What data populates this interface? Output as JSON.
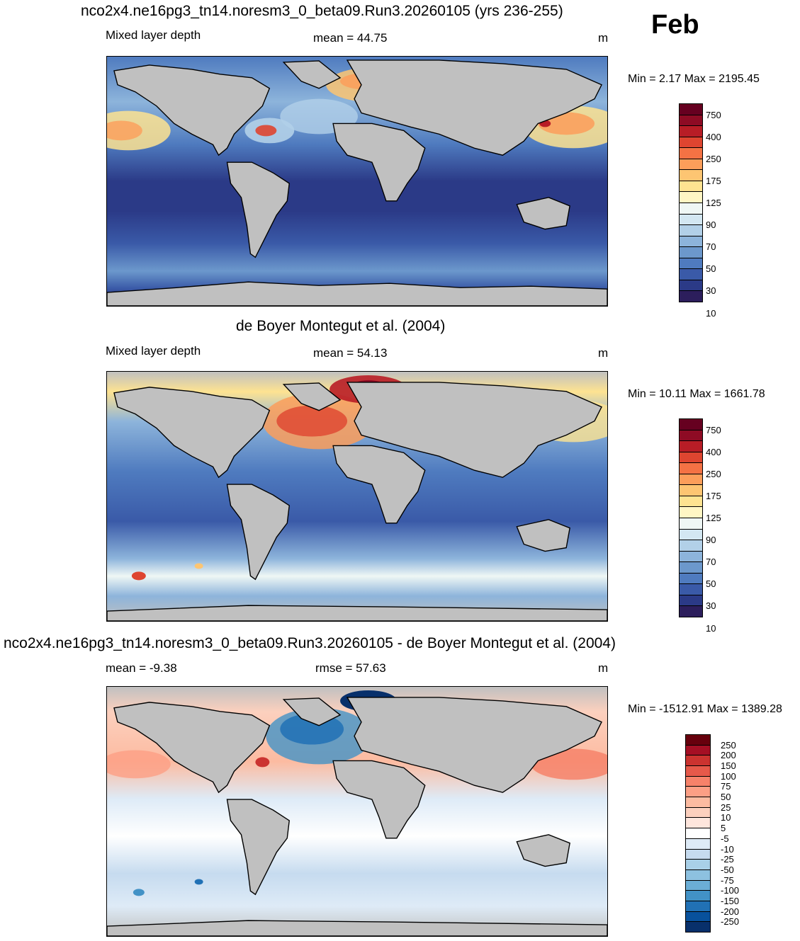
{
  "month": "Feb",
  "panels": [
    {
      "title": "nco2x4.ne16pg3_tn14.noresm3_0_beta09.Run3.20260105 (yrs 236-255)",
      "left_label": "Mixed layer depth",
      "center_label": "mean =  44.75",
      "units": "m",
      "minmax": "Min =   2.17 Max = 2195.45",
      "colorbar_labels": [
        "750",
        "400",
        "250",
        "175",
        "125",
        "90",
        "70",
        "50",
        "30",
        "10"
      ],
      "colors": [
        "#2c1e5c",
        "#2b3a87",
        "#3a5aa8",
        "#4f7bbf",
        "#6c98cc",
        "#8db4db",
        "#b2d0e8",
        "#d3e7f2",
        "#eff7f5",
        "#fff6c4",
        "#fee391",
        "#fdc572",
        "#fc9e5a",
        "#f47244",
        "#de4530",
        "#b81d26",
        "#8e0b24",
        "#660020"
      ]
    },
    {
      "title": "de Boyer Montegut et al. (2004)",
      "left_label": "Mixed layer depth",
      "center_label": "mean =  54.13",
      "units": "m",
      "minmax": "Min =  10.11 Max = 1661.78",
      "colorbar_labels": [
        "750",
        "400",
        "250",
        "175",
        "125",
        "90",
        "70",
        "50",
        "30",
        "10"
      ],
      "colors": [
        "#2c1e5c",
        "#2b3a87",
        "#3a5aa8",
        "#4f7bbf",
        "#6c98cc",
        "#8db4db",
        "#b2d0e8",
        "#d3e7f2",
        "#eff7f5",
        "#fff6c4",
        "#fee391",
        "#fdc572",
        "#fc9e5a",
        "#f47244",
        "#de4530",
        "#b81d26",
        "#8e0b24",
        "#660020"
      ]
    },
    {
      "title": "nco2x4.ne16pg3_tn14.noresm3_0_beta09.Run3.20260105 - de Boyer Montegut et al. (2004)",
      "left_label": "mean =  -9.38",
      "center_label": "rmse =  57.63",
      "units": "m",
      "minmax": "Min = -1512.91 Max = 1389.28",
      "colorbar_labels": [
        "250",
        "200",
        "150",
        "100",
        "75",
        "50",
        "25",
        "10",
        "5",
        "-5",
        "-10",
        "-25",
        "-50",
        "-75",
        "-100",
        "-150",
        "-200",
        "-250"
      ],
      "colors": [
        "#08306b",
        "#08519c",
        "#2171b5",
        "#4292c6",
        "#6baed6",
        "#8dc1e0",
        "#a9d0e8",
        "#c6dbef",
        "#deebf7",
        "#ffffff",
        "#fee6dd",
        "#fcd0be",
        "#fcbba1",
        "#fc9f85",
        "#f6826a",
        "#e6594a",
        "#cb3330",
        "#a50f24",
        "#67000d"
      ]
    }
  ]
}
